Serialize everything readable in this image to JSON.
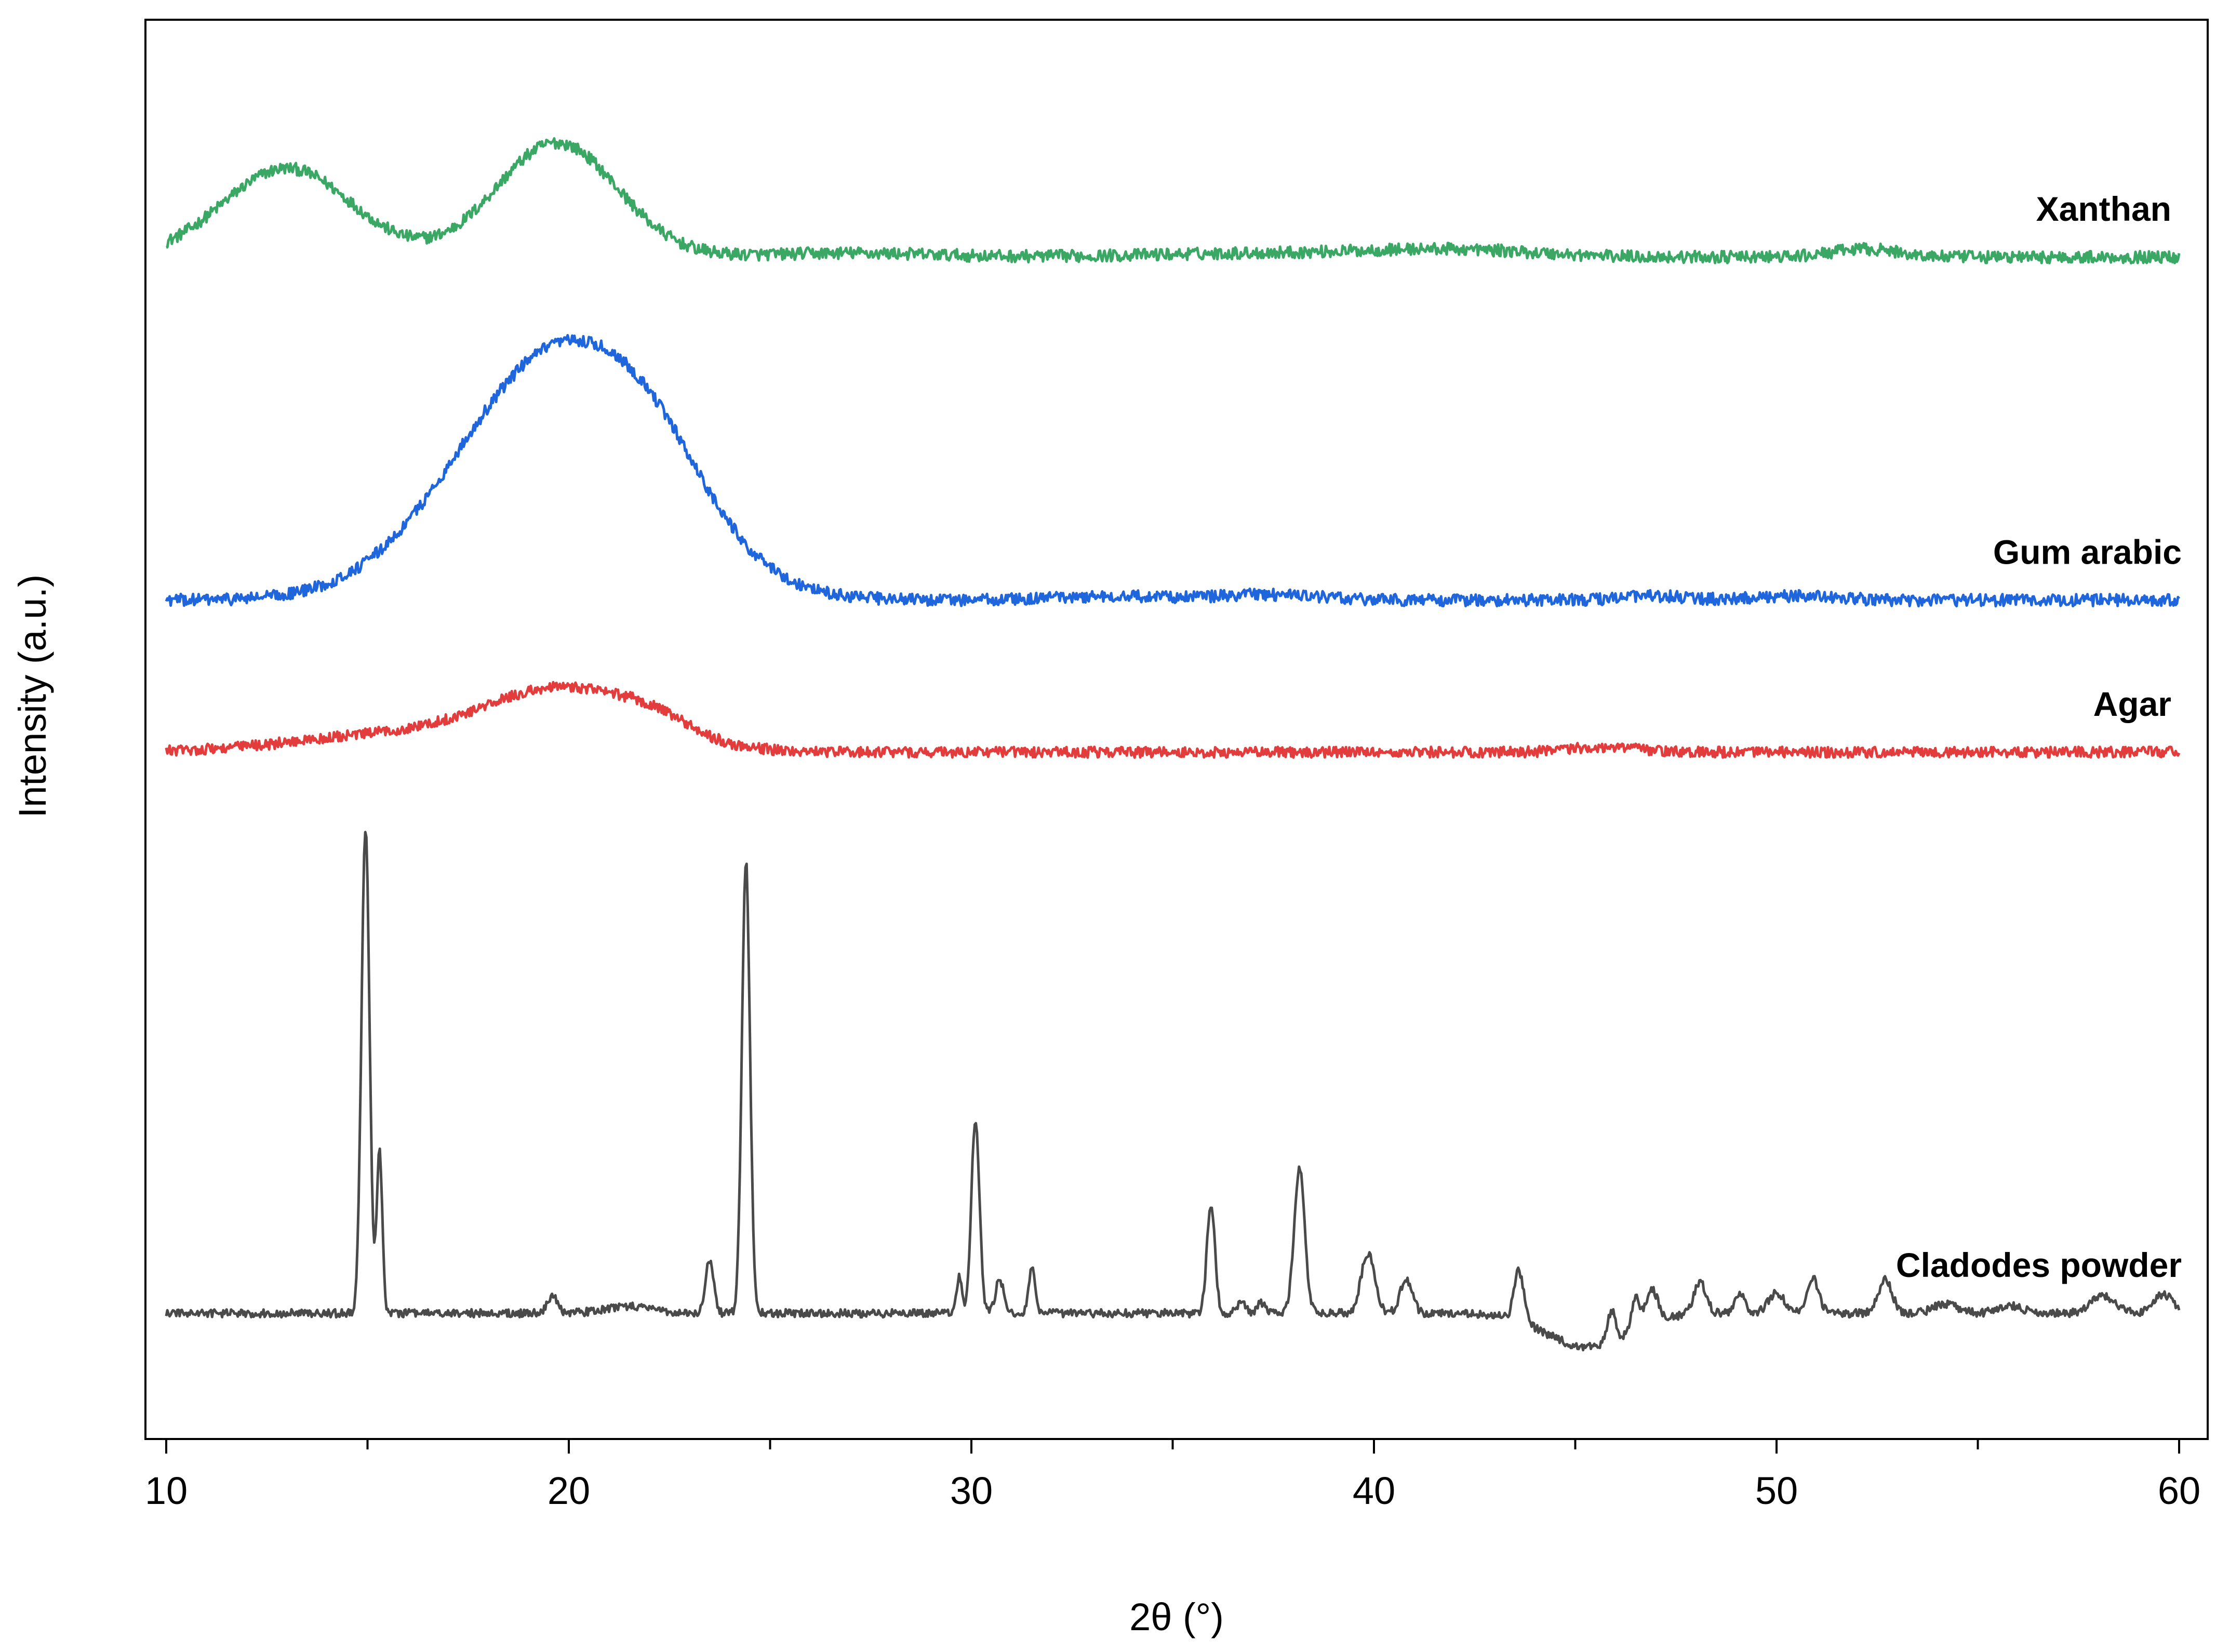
{
  "chart_data": {
    "type": "line",
    "title": "",
    "xlabel": "2θ (°)",
    "ylabel": "Intensity (a.u.)",
    "xlim": [
      10,
      60
    ],
    "ylim": [
      0,
      100
    ],
    "x_ticks": [
      10,
      20,
      30,
      40,
      50,
      60
    ],
    "x_minor_ticks": [
      15,
      25,
      35,
      45,
      55
    ],
    "y_ticks_shown": false,
    "grid": false,
    "legend": "none (series labels placed at right end of each trace)",
    "series": [
      {
        "name": "Xanthan",
        "color": "#3aa864",
        "baseline": 86.3,
        "noise": 0.45,
        "shape": [
          {
            "center": 13,
            "height": 6.6,
            "width": 1.6
          },
          {
            "center": 19.7,
            "height": 8.5,
            "width": 1.5
          },
          {
            "center": 27,
            "height": 0.3,
            "width": 2
          },
          {
            "center": 37.5,
            "height": 0.3,
            "width": 3
          },
          {
            "center": 42,
            "height": 0.5,
            "width": 2
          },
          {
            "center": 52.2,
            "height": 0.6,
            "width": 0.8
          }
        ]
      },
      {
        "name": "Gum arabic",
        "color": "#1f66dd",
        "baseline": 60.8,
        "noise": 0.45,
        "shape": [
          {
            "center": 19.8,
            "height": 18.6,
            "width": 2.5
          },
          {
            "center": 22.2,
            "height": 3,
            "width": 1.3
          },
          {
            "center": 33.6,
            "height": 0.3,
            "width": 1.5
          },
          {
            "center": 37.4,
            "height": 0.4,
            "width": 1.2
          },
          {
            "center": 47,
            "height": 0.3,
            "width": 0.8
          },
          {
            "center": 50.5,
            "height": 0.3,
            "width": 1
          }
        ]
      },
      {
        "name": "Agar",
        "color": "#e33c3c",
        "baseline": 49.5,
        "noise": 0.4,
        "shape": [
          {
            "center": 20,
            "height": 4.6,
            "width": 2
          },
          {
            "center": 15.5,
            "height": 1.2,
            "width": 2.5
          },
          {
            "center": 22.2,
            "height": 0.8,
            "width": 0.8
          },
          {
            "center": 45.7,
            "height": 0.4,
            "width": 0.8
          }
        ]
      },
      {
        "name": "Cladodes powder",
        "color": "#4a4a4a",
        "baseline": 7.8,
        "noise": 0.3,
        "shape": [
          {
            "center": 14.95,
            "height": 36,
            "width": 0.1
          },
          {
            "center": 15.3,
            "height": 12,
            "width": 0.07
          },
          {
            "center": 19.6,
            "height": 1.4,
            "width": 0.12
          },
          {
            "center": 21.5,
            "height": 0.5,
            "width": 0.6
          },
          {
            "center": 23.5,
            "height": 4,
            "width": 0.1
          },
          {
            "center": 24.4,
            "height": 33.6,
            "width": 0.1
          },
          {
            "center": 29.7,
            "height": 2.7,
            "width": 0.07
          },
          {
            "center": 30.1,
            "height": 14.5,
            "width": 0.1
          },
          {
            "center": 30.7,
            "height": 2.5,
            "width": 0.1
          },
          {
            "center": 31.5,
            "height": 3.4,
            "width": 0.08
          },
          {
            "center": 35.95,
            "height": 8,
            "width": 0.1
          },
          {
            "center": 36.7,
            "height": 0.8,
            "width": 0.1
          },
          {
            "center": 37.2,
            "height": 0.8,
            "width": 0.1
          },
          {
            "center": 38.15,
            "height": 10.8,
            "width": 0.13
          },
          {
            "center": 39.85,
            "height": 4.5,
            "width": 0.17
          },
          {
            "center": 40.8,
            "height": 2.5,
            "width": 0.15
          },
          {
            "center": 43.6,
            "height": 3.7,
            "width": 0.12
          },
          {
            "center": 45.3,
            "height": -2.5,
            "width": 1
          },
          {
            "center": 45.9,
            "height": 2.3,
            "width": 0.1
          },
          {
            "center": 46.5,
            "height": 2.3,
            "width": 0.1
          },
          {
            "center": 46.9,
            "height": 2.4,
            "width": 0.15
          },
          {
            "center": 48.1,
            "height": 2.4,
            "width": 0.15
          },
          {
            "center": 49.1,
            "height": 1.6,
            "width": 0.12
          },
          {
            "center": 50,
            "height": 1.5,
            "width": 0.2
          },
          {
            "center": 50.9,
            "height": 2.6,
            "width": 0.15
          },
          {
            "center": 52.7,
            "height": 2.5,
            "width": 0.17
          },
          {
            "center": 54.2,
            "height": 0.7,
            "width": 0.3
          },
          {
            "center": 55.8,
            "height": 0.6,
            "width": 0.3
          },
          {
            "center": 58.1,
            "height": 1.3,
            "width": 0.3
          },
          {
            "center": 59.6,
            "height": 1.4,
            "width": 0.25
          }
        ]
      }
    ]
  }
}
